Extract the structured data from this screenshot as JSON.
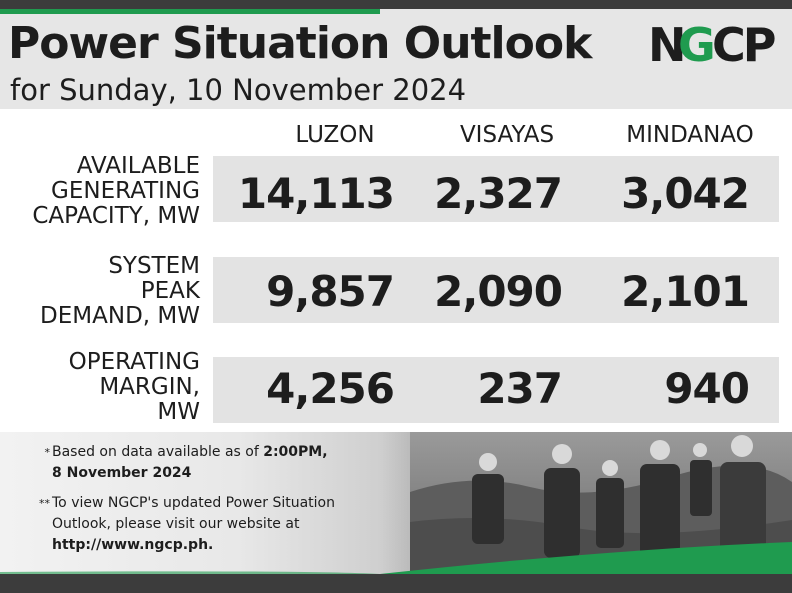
{
  "header": {
    "title": "Power Situation Outlook",
    "subtitle": "for Sunday, 10 November 2024",
    "logo_text": "NGCP"
  },
  "columns": [
    "LUZON",
    "VISAYAS",
    "MINDANAO"
  ],
  "rows": [
    {
      "label_lines": [
        "AVAILABLE",
        "GENERATING",
        "CAPACITY, MW"
      ],
      "values": [
        "14,113",
        "2,327",
        "3,042"
      ]
    },
    {
      "label_lines": [
        "SYSTEM",
        "PEAK",
        "DEMAND, MW"
      ],
      "values": [
        "9,857",
        "2,090",
        "2,101"
      ]
    },
    {
      "label_lines": [
        "OPERATING",
        "MARGIN,",
        "MW"
      ],
      "values": [
        "4,256",
        "237",
        "940"
      ]
    }
  ],
  "footer": {
    "note1_mark": "*",
    "note1_text": "Based on data available as of ",
    "note1_bold": "2:00PM,",
    "note1_line2": "8 November 2024",
    "note2_mark": "**",
    "note2_line1": "To view NGCP's updated Power Situation",
    "note2_line2": "Outlook, please visit our website at",
    "note2_link": "http://www.ngcp.ph."
  },
  "colors": {
    "brand_green": "#1f9b4f",
    "text": "#1d1d1d",
    "band": "#e3e3e3",
    "frame": "#3c3c3c"
  }
}
